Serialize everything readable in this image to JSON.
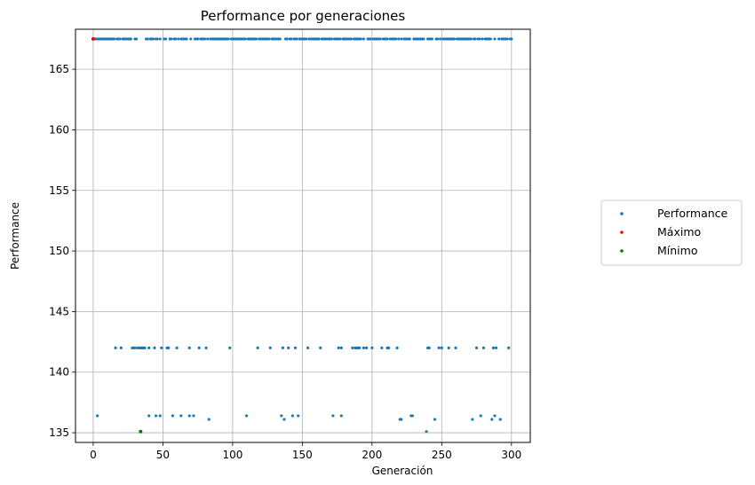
{
  "chart_data": {
    "type": "scatter",
    "title": "Performance por generaciones",
    "xlabel": "Generación",
    "ylabel": "Performance",
    "xlim": [
      -12.7,
      313.5
    ],
    "ylim": [
      134.2,
      168.3
    ],
    "xticks": [
      0,
      50,
      100,
      150,
      200,
      250,
      300
    ],
    "yticks": [
      135,
      140,
      145,
      150,
      155,
      160,
      165
    ],
    "grid": true,
    "legend_position": "right",
    "series": [
      {
        "name": "Performance",
        "color": "#1f77b4",
        "groups": [
          {
            "y": 167.5,
            "x": [
              0,
              1,
              2,
              3,
              4,
              5,
              6,
              7,
              8,
              9,
              10,
              11,
              12,
              13,
              14,
              15,
              17,
              18,
              19,
              21,
              22,
              23,
              24,
              25,
              26,
              27,
              30,
              31,
              38,
              39,
              41,
              42,
              43,
              45,
              46,
              48,
              51,
              52,
              55,
              56,
              58,
              59,
              61,
              63,
              64,
              65,
              66,
              67,
              70,
              73,
              74,
              75,
              77,
              78,
              79,
              80,
              82,
              84,
              85,
              86,
              87,
              88,
              89,
              90,
              91,
              92,
              93,
              94,
              95,
              96,
              97,
              99,
              100,
              101,
              102,
              103,
              104,
              105,
              106,
              107,
              108,
              109,
              111,
              112,
              113,
              114,
              115,
              116,
              117,
              119,
              120,
              121,
              122,
              123,
              124,
              125,
              126,
              128,
              129,
              130,
              131,
              132,
              133,
              134,
              138,
              139,
              141,
              142,
              144,
              145,
              146,
              148,
              149,
              150,
              151,
              152,
              153,
              155,
              156,
              157,
              158,
              159,
              160,
              161,
              162,
              164,
              165,
              166,
              167,
              168,
              169,
              170,
              171,
              173,
              174,
              175,
              176,
              177,
              179,
              180,
              181,
              182,
              183,
              184,
              185,
              187,
              188,
              189,
              190,
              191,
              192,
              194,
              197,
              198,
              199,
              201,
              202,
              203,
              204,
              205,
              206,
              208,
              209,
              210,
              211,
              213,
              214,
              215,
              216,
              217,
              219,
              221,
              223,
              224,
              225,
              226,
              227,
              230,
              231,
              232,
              233,
              234,
              235,
              236,
              237,
              240,
              241,
              242,
              243,
              246,
              247,
              249,
              251,
              252,
              253,
              254,
              255,
              256,
              257,
              258,
              259,
              261,
              262,
              263,
              264,
              265,
              266,
              267,
              268,
              269,
              270,
              271,
              273,
              274,
              276,
              277,
              279,
              281,
              282,
              283,
              284,
              285,
              288,
              291,
              293,
              294,
              295,
              296,
              297,
              299,
              300
            ]
          },
          {
            "y": 142.0,
            "x": [
              16,
              20,
              28,
              29,
              30,
              32,
              33,
              34,
              35,
              36,
              37,
              40,
              44,
              49,
              53,
              54,
              60,
              69,
              76,
              81,
              98,
              118,
              127,
              136,
              140,
              145,
              154,
              163,
              176,
              178,
              186,
              188,
              189,
              190,
              191,
              194,
              196,
              200,
              207,
              211,
              212,
              218,
              240,
              241,
              248,
              250,
              255,
              260,
              275,
              280,
              287,
              289,
              298
            ]
          },
          {
            "y": 136.4,
            "x": [
              3,
              40,
              45,
              48,
              57,
              63,
              69,
              72,
              110,
              135,
              143,
              147,
              172,
              178,
              228,
              229,
              278,
              288
            ]
          },
          {
            "y": 136.1,
            "x": [
              83,
              137,
              220,
              221,
              245,
              272,
              286,
              292
            ]
          },
          {
            "y": 135.1,
            "x": [
              34,
              239
            ]
          }
        ]
      },
      {
        "name": "Máximo",
        "color": "#ff0000",
        "points": [
          [
            0,
            167.5
          ]
        ]
      },
      {
        "name": "Mínimo",
        "color": "#008000",
        "points": [
          [
            34,
            135.1
          ]
        ]
      }
    ]
  }
}
